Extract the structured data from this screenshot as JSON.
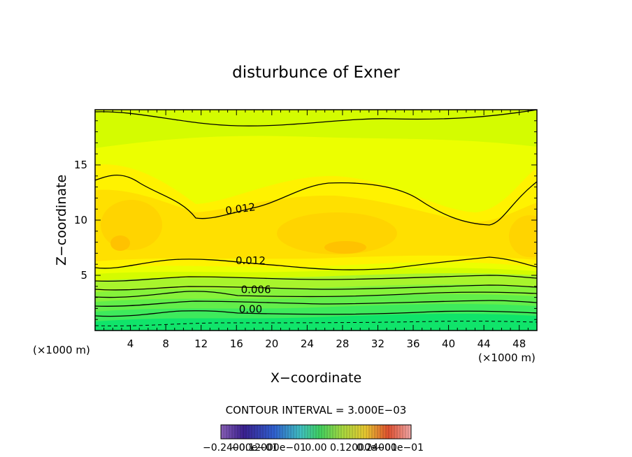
{
  "chart_data": {
    "type": "contour",
    "title": "disturbunce of Exner",
    "xlabel": "X−coordinate",
    "ylabel": "Z−coordinate",
    "x_unit_left": "(×1000 m)",
    "x_unit_right": "(×1000 m)",
    "xlim": [
      0,
      50
    ],
    "ylim": [
      0,
      20
    ],
    "x_ticks": [
      4,
      8,
      12,
      16,
      20,
      24,
      28,
      32,
      36,
      40,
      44,
      48
    ],
    "y_ticks": [
      5,
      10,
      15
    ],
    "contour_labels": [
      {
        "text": "0.012",
        "x": 16.5,
        "y": 10.7,
        "angle": -8
      },
      {
        "text": "0.012",
        "x": 17.6,
        "y": 6.0,
        "angle": 0
      },
      {
        "text": "0.006",
        "x": 18.2,
        "y": 3.4,
        "angle": 0
      },
      {
        "text": "0.00",
        "x": 17.6,
        "y": 1.6,
        "angle": 0
      }
    ],
    "contour_interval_text": "CONTOUR INTERVAL = 3.000E−03",
    "colorbar_labels": [
      "−0.24000e−01",
      "−0.12000e−01",
      "0.00",
      "0.12000e−01",
      "0.24000e−01"
    ],
    "colors": {
      "field_low": "#00e676",
      "field_mid": "#ccff00",
      "field_high": "#ffd400",
      "contour_line": "#000000"
    }
  }
}
